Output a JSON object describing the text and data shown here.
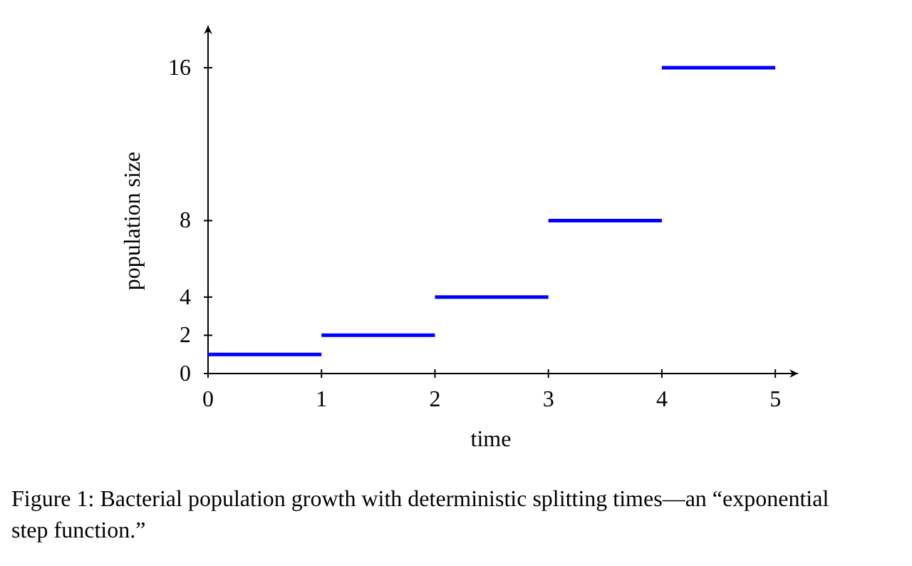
{
  "chart_data": {
    "type": "step",
    "xlabel": "time",
    "ylabel": "population size",
    "x": [
      0,
      1,
      2,
      3,
      4,
      5
    ],
    "series": [
      {
        "color": "#0000ff",
        "values": [
          1,
          2,
          4,
          8,
          16,
          16
        ]
      }
    ],
    "xlim": [
      0,
      5.2
    ],
    "ylim": [
      0,
      18.2
    ],
    "xticks": [
      0,
      1,
      2,
      3,
      4,
      5
    ],
    "yticks": [
      0,
      2,
      4,
      8,
      16
    ],
    "grid": false,
    "annotations": [
      "Figure 1: Bacterial population growth with deterministic splitting times—an “exponential step function.”"
    ]
  }
}
